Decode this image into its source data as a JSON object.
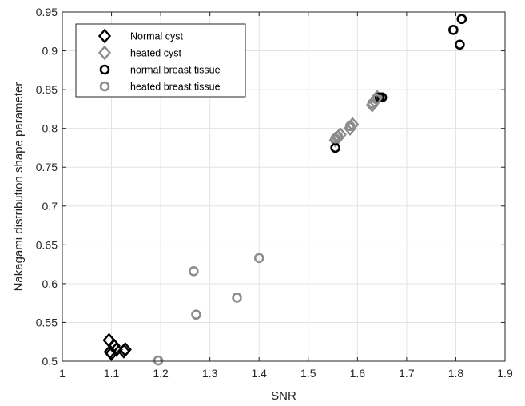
{
  "chart_data": {
    "type": "scatter",
    "xlabel": "SNR",
    "ylabel": "Nakagami distribution shape parameter",
    "xlim": [
      1,
      1.9
    ],
    "ylim": [
      0.5,
      0.95
    ],
    "xticks": [
      "1",
      "1.1",
      "1.2",
      "1.3",
      "1.4",
      "1.5",
      "1.6",
      "1.7",
      "1.8",
      "1.9"
    ],
    "yticks": [
      "0.5",
      "0.55",
      "0.6",
      "0.65",
      "0.7",
      "0.75",
      "0.8",
      "0.85",
      "0.9",
      "0.95"
    ],
    "grid": true,
    "legend_position": "top-left",
    "series": [
      {
        "name": "Normal cyst",
        "marker": "diamond",
        "color": "#000000",
        "points": [
          [
            1.095,
            0.527
          ],
          [
            1.105,
            0.52
          ],
          [
            1.11,
            0.515
          ],
          [
            1.097,
            0.512
          ],
          [
            1.1,
            0.51
          ],
          [
            1.125,
            0.513
          ],
          [
            1.128,
            0.515
          ]
        ]
      },
      {
        "name": "heated cyst",
        "marker": "diamond",
        "color": "#8c8c8c",
        "points": [
          [
            1.555,
            0.785
          ],
          [
            1.56,
            0.788
          ],
          [
            1.565,
            0.792
          ],
          [
            1.585,
            0.8
          ],
          [
            1.59,
            0.805
          ],
          [
            1.63,
            0.83
          ],
          [
            1.635,
            0.835
          ],
          [
            1.64,
            0.84
          ]
        ]
      },
      {
        "name": "normal breast tissue",
        "marker": "circle",
        "color": "#000000",
        "points": [
          [
            1.555,
            0.775
          ],
          [
            1.645,
            0.84
          ],
          [
            1.65,
            0.84
          ],
          [
            1.795,
            0.927
          ],
          [
            1.808,
            0.908
          ],
          [
            1.812,
            0.941
          ]
        ]
      },
      {
        "name": "heated breast tissue",
        "marker": "circle",
        "color": "#8c8c8c",
        "points": [
          [
            1.195,
            0.501
          ],
          [
            1.267,
            0.616
          ],
          [
            1.272,
            0.56
          ],
          [
            1.355,
            0.582
          ],
          [
            1.4,
            0.633
          ],
          [
            1.555,
            0.787
          ],
          [
            1.56,
            0.79
          ],
          [
            1.585,
            0.803
          ],
          [
            1.63,
            0.832
          ],
          [
            1.638,
            0.838
          ]
        ]
      }
    ]
  }
}
